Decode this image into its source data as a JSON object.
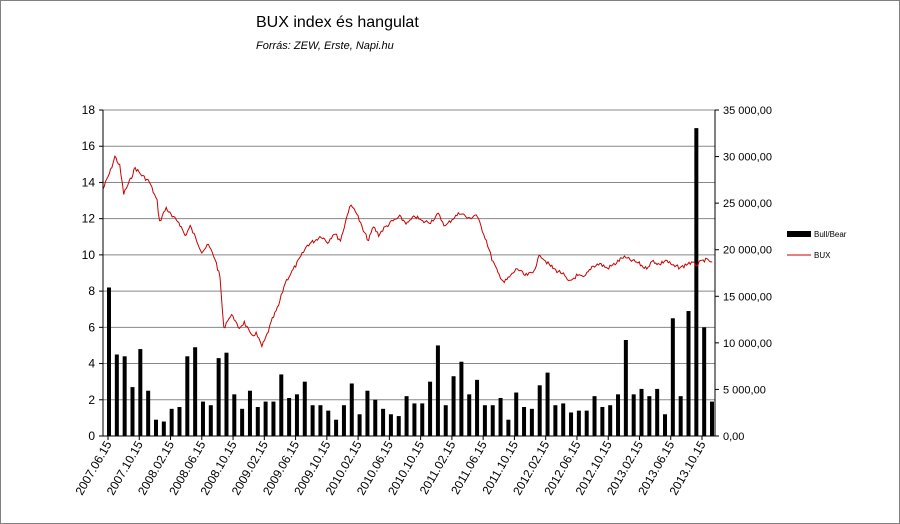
{
  "chart_data": {
    "type": "bar+line",
    "title": "BUX index és hangulat",
    "subtitle": "Forrás: ZEW, Erste, Napi.hu",
    "y_left": {
      "lim": [
        0,
        18
      ],
      "ticks": [
        "0",
        "2",
        "4",
        "6",
        "8",
        "10",
        "12",
        "14",
        "16",
        "18"
      ]
    },
    "y_right": {
      "lim": [
        0,
        35000
      ],
      "ticks": [
        "0,00",
        "5 000,00",
        "10 000,00",
        "15 000,00",
        "20 000,00",
        "25 000,00",
        "30 000,00",
        "35 000,00"
      ]
    },
    "x_ticks": [
      "2007.06.15",
      "2007.10.15",
      "2008.02.15",
      "2008.06.15",
      "2008.10.15",
      "2009.02.15",
      "2009.06.15",
      "2009.10.15",
      "2010.02.15",
      "2010.06.15",
      "2010.10.15",
      "2011.02.15",
      "2011.06.15",
      "2011.10.15",
      "2012.02.15",
      "2012.06.15",
      "2012.10.15",
      "2013.02.15",
      "2013.06.15",
      "2013.10.15"
    ],
    "x_range": [
      "2007-06-15",
      "2014-01-31"
    ],
    "grid": true,
    "legend_position": "right",
    "series": [
      {
        "name": "Bull/Bear",
        "kind": "bar",
        "axis": "left",
        "color": "#000000",
        "values": [
          8.2,
          4.5,
          4.4,
          2.7,
          4.8,
          2.5,
          0.9,
          0.8,
          1.5,
          1.6,
          4.4,
          4.9,
          1.9,
          1.7,
          4.3,
          4.6,
          2.3,
          1.5,
          2.5,
          1.6,
          1.9,
          1.9,
          3.4,
          2.1,
          2.3,
          3.0,
          1.7,
          1.7,
          1.4,
          0.9,
          1.7,
          2.9,
          1.2,
          2.5,
          2.0,
          1.5,
          1.2,
          1.1,
          2.2,
          1.8,
          1.8,
          3.0,
          5.0,
          1.7,
          3.3,
          4.1,
          2.3,
          3.1,
          1.7,
          1.7,
          2.1,
          0.9,
          2.4,
          1.6,
          1.5,
          2.8,
          3.5,
          1.7,
          1.8,
          1.3,
          1.4,
          1.4,
          2.2,
          1.6,
          1.7,
          2.3,
          5.3,
          2.3,
          2.6,
          2.2,
          2.6,
          1.2,
          6.5,
          2.2,
          6.9,
          17.0,
          6.0,
          1.9
        ]
      },
      {
        "name": "BUX",
        "kind": "line",
        "axis": "right",
        "color": "#cc0000",
        "x": [
          "2007-06-15",
          "2007-07-15",
          "2007-08-01",
          "2007-08-20",
          "2007-09-05",
          "2007-10-01",
          "2007-10-20",
          "2007-11-15",
          "2007-12-15",
          "2008-01-15",
          "2008-01-25",
          "2008-02-20",
          "2008-03-15",
          "2008-04-10",
          "2008-05-05",
          "2008-05-25",
          "2008-06-20",
          "2008-07-10",
          "2008-08-05",
          "2008-09-01",
          "2008-09-20",
          "2008-10-05",
          "2008-10-20",
          "2008-11-10",
          "2008-12-01",
          "2008-12-25",
          "2009-01-20",
          "2009-02-10",
          "2009-03-05",
          "2009-03-20",
          "2009-04-15",
          "2009-05-10",
          "2009-06-05",
          "2009-07-01",
          "2009-08-01",
          "2009-09-01",
          "2009-10-01",
          "2009-10-25",
          "2009-11-20",
          "2009-12-15",
          "2010-01-10",
          "2010-01-25",
          "2010-02-15",
          "2010-03-10",
          "2010-04-10",
          "2010-05-01",
          "2010-05-20",
          "2010-06-10",
          "2010-07-01",
          "2010-08-01",
          "2010-09-01",
          "2010-10-01",
          "2010-11-01",
          "2010-12-01",
          "2011-01-01",
          "2011-02-01",
          "2011-03-01",
          "2011-04-01",
          "2011-05-01",
          "2011-06-01",
          "2011-07-01",
          "2011-07-20",
          "2011-08-10",
          "2011-09-01",
          "2011-09-25",
          "2011-10-20",
          "2011-11-15",
          "2011-12-10",
          "2012-01-10",
          "2012-02-10",
          "2012-03-10",
          "2012-04-10",
          "2012-05-10",
          "2012-06-05",
          "2012-07-01",
          "2012-08-01",
          "2012-09-01",
          "2012-10-01",
          "2012-11-01",
          "2012-12-01",
          "2013-01-01",
          "2013-02-01",
          "2013-03-01",
          "2013-04-01",
          "2013-05-01",
          "2013-06-01",
          "2013-06-25",
          "2013-07-20",
          "2013-08-20",
          "2013-09-20",
          "2013-10-20",
          "2013-11-20",
          "2013-12-20",
          "2014-01-20"
        ],
        "values": [
          26500,
          28500,
          30000,
          29000,
          26000,
          27500,
          28800,
          28000,
          27300,
          25200,
          23000,
          24500,
          23500,
          23000,
          21500,
          22500,
          21000,
          19800,
          20500,
          19000,
          17000,
          11500,
          12500,
          13000,
          11500,
          12200,
          10800,
          11000,
          9600,
          10500,
          12500,
          14000,
          16500,
          17600,
          19000,
          20500,
          21000,
          21500,
          20800,
          21800,
          21000,
          22500,
          24700,
          24300,
          22000,
          21000,
          22500,
          21600,
          22300,
          23000,
          23500,
          22800,
          23600,
          23000,
          23000,
          23800,
          22500,
          23400,
          24000,
          23300,
          23800,
          22500,
          21000,
          19000,
          17500,
          16500,
          17200,
          18000,
          17200,
          17500,
          19500,
          18500,
          17800,
          17500,
          16500,
          17200,
          17000,
          18200,
          18500,
          18000,
          18500,
          19200,
          18900,
          18600,
          18000,
          18800,
          18400,
          18900,
          18200,
          18100,
          18600,
          18400,
          18900,
          18700
        ]
      }
    ]
  }
}
